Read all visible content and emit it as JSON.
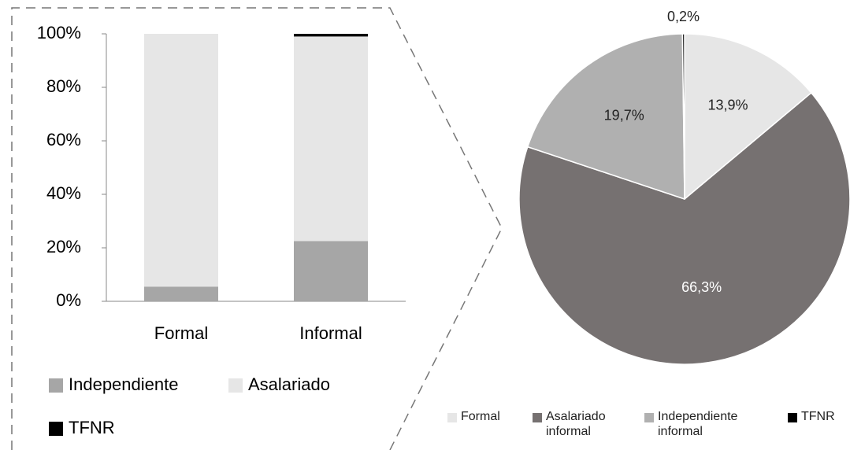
{
  "chart_data": [
    {
      "type": "stacked-bar",
      "categories": [
        "Formal",
        "Informal"
      ],
      "series": [
        {
          "name": "Independiente",
          "color": "#a6a6a6",
          "values": [
            5.5,
            22.5
          ]
        },
        {
          "name": "Asalariado",
          "color": "#e6e6e6",
          "values": [
            94.5,
            76.5
          ]
        },
        {
          "name": "TFNR",
          "color": "#000000",
          "values": [
            0,
            1.0
          ]
        }
      ],
      "ylim": [
        0,
        100
      ],
      "yticks": [
        {
          "value": 0,
          "label": "0%"
        },
        {
          "value": 20,
          "label": "20%"
        },
        {
          "value": 40,
          "label": "40%"
        },
        {
          "value": 60,
          "label": "60%"
        },
        {
          "value": 80,
          "label": "80%"
        },
        {
          "value": 100,
          "label": "100%"
        }
      ],
      "grid": false
    },
    {
      "type": "pie",
      "categories": [
        "Formal",
        "Asalariado informal",
        "Independiente informal",
        "TFNR"
      ],
      "values": [
        13.9,
        66.3,
        19.7,
        0.2
      ],
      "value_labels": [
        "13,9%",
        "66,3%",
        "19,7%",
        "0,2%"
      ],
      "colors": [
        "#e6e6e6",
        "#767171",
        "#b0b0b0",
        "#000000"
      ]
    }
  ]
}
